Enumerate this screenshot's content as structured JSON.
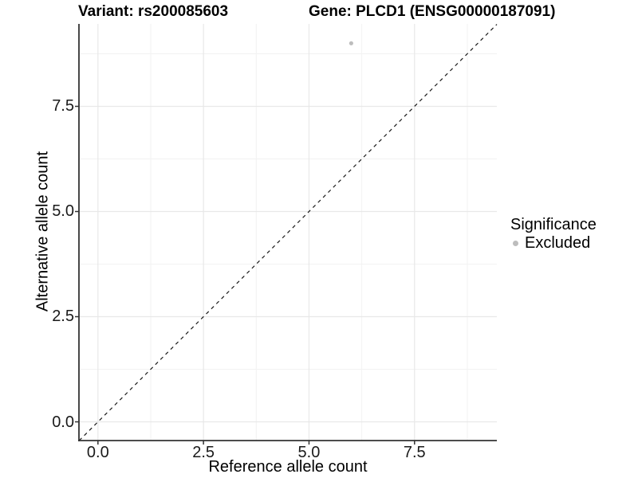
{
  "header": {
    "variant_title": "Variant: rs200085603",
    "gene_title": "Gene: PLCD1 (ENSG00000187091)"
  },
  "chart_data": {
    "type": "scatter",
    "xlabel": "Reference allele count",
    "ylabel": "Alternative allele count",
    "xlim": [
      -0.45,
      9.45
    ],
    "ylim": [
      -0.445,
      9.46
    ],
    "xticks": [
      0,
      2.5,
      5,
      7.5
    ],
    "xtick_labels": [
      "0.0",
      "2.5",
      "5.0",
      "7.5"
    ],
    "yticks": [
      0,
      2.5,
      5,
      7.5
    ],
    "ytick_labels": [
      "0.0",
      "2.5",
      "5.0",
      "7.5"
    ],
    "minor_xticks": [
      1.25,
      3.75,
      6.25,
      8.75
    ],
    "minor_yticks": [
      1.25,
      3.75,
      6.25,
      8.75
    ],
    "grid": "major+minor",
    "series": [
      {
        "name": "Excluded",
        "color": "#bdbdbd",
        "points": [
          {
            "x": 6,
            "y": 9
          }
        ]
      }
    ],
    "reference_line": {
      "slope": 1,
      "intercept": 0,
      "style": "dashed",
      "color": "#1a1a1a"
    },
    "legend": {
      "title": "Significance",
      "position": "right",
      "entries": [
        {
          "label": "Excluded",
          "color": "#bdbdbd"
        }
      ]
    }
  },
  "colors": {
    "background": "#ffffff",
    "axis": "#333333",
    "grid_major": "#e8e8e8",
    "grid_minor": "#f2f2f2",
    "tick_text": "#1a1a1a",
    "point": "#bdbdbd"
  }
}
